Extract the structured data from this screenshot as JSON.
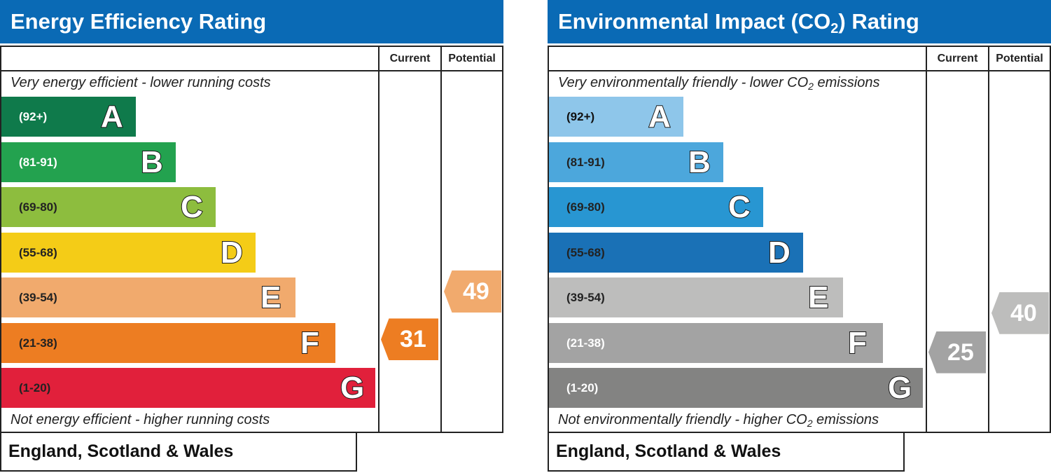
{
  "energy": {
    "title": "Energy Efficiency Rating",
    "current_label": "Current",
    "potential_label": "Potential",
    "top_note": "Very energy efficient - lower running costs",
    "bottom_note": "Not energy efficient - higher running costs",
    "country": "England, Scotland & Wales"
  },
  "environment": {
    "title_main": "Environmental Impact (CO",
    "title_sub": "2",
    "title_end": ") Rating",
    "current_label": "Current",
    "potential_label": "Potential",
    "top_note_main": "Very environmentally friendly - lower CO",
    "top_note_sub": "2",
    "top_note_end": " emissions",
    "bottom_note_main": "Not environmentally friendly - higher CO",
    "bottom_note_sub": "2",
    "bottom_note_end": " emissions",
    "country": "England, Scotland & Wales"
  },
  "chart_data": [
    {
      "type": "bar",
      "title": "Energy Efficiency Rating",
      "categories": [
        "A",
        "B",
        "C",
        "D",
        "E",
        "F",
        "G"
      ],
      "ranges": [
        "(92+)",
        "(81-91)",
        "(69-80)",
        "(55-68)",
        "(39-54)",
        "(21-38)",
        "(1-20)"
      ],
      "colors": [
        "#0f7a4b",
        "#23a24f",
        "#8dbd3e",
        "#f4cc17",
        "#f1aa6d",
        "#ed7d22",
        "#e1203b"
      ],
      "range_text_colors": [
        "#ffffff",
        "#ffffff",
        "#222222",
        "#222222",
        "#222222",
        "#222222",
        "#222222"
      ],
      "current": {
        "value": 31,
        "band": "F",
        "color": "#ed7d22"
      },
      "potential": {
        "value": 49,
        "band": "E",
        "color": "#f1aa6d"
      }
    },
    {
      "type": "bar",
      "title": "Environmental Impact (CO2) Rating",
      "categories": [
        "A",
        "B",
        "C",
        "D",
        "E",
        "F",
        "G"
      ],
      "ranges": [
        "(92+)",
        "(81-91)",
        "(69-80)",
        "(55-68)",
        "(39-54)",
        "(21-38)",
        "(1-20)"
      ],
      "colors": [
        "#8ec6ea",
        "#4ca7dc",
        "#2896d2",
        "#1a71b6",
        "#bdbdbc",
        "#a3a3a3",
        "#838382"
      ],
      "range_text_colors": [
        "#111111",
        "#222222",
        "#222222",
        "#222222",
        "#222222",
        "#ffffff",
        "#ffffff"
      ],
      "current": {
        "value": 25,
        "band": "F",
        "color": "#a3a3a3"
      },
      "potential": {
        "value": 40,
        "band": "E",
        "color": "#bdbdbc"
      }
    }
  ]
}
